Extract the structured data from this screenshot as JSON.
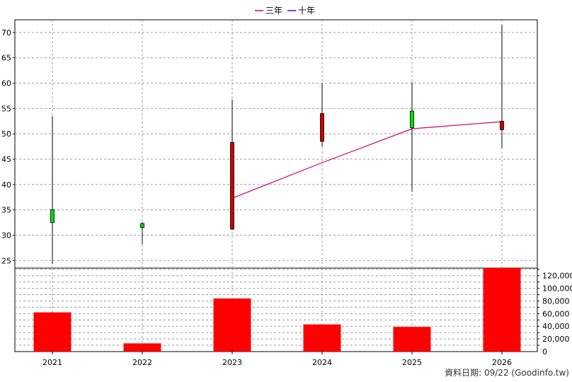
{
  "legend": {
    "items": [
      {
        "label": "三年",
        "color": "#cc0066"
      },
      {
        "label": "十年",
        "color": "#6600cc"
      }
    ]
  },
  "footer": {
    "text": "資料日期: 09/22  (Goodinfo.tw)"
  },
  "chart_data": [
    {
      "type": "candlestick",
      "categories": [
        "2021",
        "2022",
        "2023",
        "2024",
        "2025",
        "2026"
      ],
      "y_ticks": [
        25,
        30,
        35,
        40,
        45,
        50,
        55,
        60,
        65,
        70
      ],
      "ylim": [
        23.5,
        72.5
      ],
      "grid": true,
      "colors": {
        "up": "#00dd00",
        "down": "#cc0000",
        "wick": "#000000"
      },
      "candles": [
        {
          "open": 32.5,
          "close": 35.0,
          "high": 53.5,
          "low": 24.3
        },
        {
          "open": 31.5,
          "close": 32.3,
          "high": 32.6,
          "low": 28.2
        },
        {
          "open": 48.3,
          "close": 31.2,
          "high": 56.8,
          "low": 31.0
        },
        {
          "open": 54.0,
          "close": 48.5,
          "high": 60.0,
          "low": 47.5
        },
        {
          "open": 51.2,
          "close": 54.5,
          "high": 60.2,
          "low": 38.6
        },
        {
          "open": 52.5,
          "close": 50.8,
          "high": 71.5,
          "low": 47.2
        }
      ],
      "series": [
        {
          "name": "三年",
          "color": "#cc0066",
          "values": [
            null,
            null,
            37.3,
            44.3,
            51.0,
            52.4
          ]
        },
        {
          "name": "十年",
          "color": "#6600cc",
          "values": [
            null,
            null,
            null,
            null,
            null,
            null
          ]
        }
      ]
    },
    {
      "type": "bar",
      "categories": [
        "2021",
        "2022",
        "2023",
        "2024",
        "2025",
        "2026"
      ],
      "y_tick_labels": [
        "0",
        "20,000",
        "40,000",
        "60,000",
        "80,000",
        "100,000",
        "120,000"
      ],
      "y_tick_values": [
        0,
        20000,
        40000,
        60000,
        80000,
        100000,
        120000
      ],
      "ylim": [
        0,
        132000
      ],
      "bar_color": "#ff0000",
      "values": [
        62000,
        13000,
        84000,
        43000,
        39000,
        134000
      ]
    }
  ]
}
